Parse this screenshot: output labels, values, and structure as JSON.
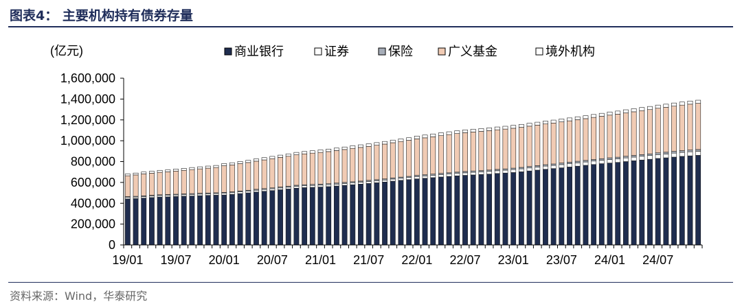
{
  "header": {
    "title": "图表4：  主要机构持有债券存量"
  },
  "footer": {
    "source": "资料来源：Wind，华泰研究"
  },
  "chart_data": {
    "type": "bar",
    "stacked": true,
    "unit_label": "(亿元)",
    "ylim": [
      0,
      1600000
    ],
    "yticks": [
      0,
      200000,
      400000,
      600000,
      800000,
      1000000,
      1200000,
      1400000,
      1600000
    ],
    "ytick_labels": [
      "0",
      "200,000",
      "400,000",
      "600,000",
      "800,000",
      "1,000,000",
      "1,200,000",
      "1,400,000",
      "1,600,000"
    ],
    "xtick_labels": [
      "19/01",
      "19/07",
      "20/01",
      "20/07",
      "21/01",
      "21/07",
      "22/01",
      "22/07",
      "23/01",
      "23/07",
      "24/01",
      "24/07"
    ],
    "legend_position": "top",
    "categories": [
      "19/01",
      "19/02",
      "19/03",
      "19/04",
      "19/05",
      "19/06",
      "19/07",
      "19/08",
      "19/09",
      "19/10",
      "19/11",
      "19/12",
      "20/01",
      "20/02",
      "20/03",
      "20/04",
      "20/05",
      "20/06",
      "20/07",
      "20/08",
      "20/09",
      "20/10",
      "20/11",
      "20/12",
      "21/01",
      "21/02",
      "21/03",
      "21/04",
      "21/05",
      "21/06",
      "21/07",
      "21/08",
      "21/09",
      "21/10",
      "21/11",
      "21/12",
      "22/01",
      "22/02",
      "22/03",
      "22/04",
      "22/05",
      "22/06",
      "22/07",
      "22/08",
      "22/09",
      "22/10",
      "22/11",
      "22/12",
      "23/01",
      "23/02",
      "23/03",
      "23/04",
      "23/05",
      "23/06",
      "23/07",
      "23/08",
      "23/09",
      "23/10",
      "23/11",
      "23/12",
      "24/01",
      "24/02",
      "24/03",
      "24/04",
      "24/05",
      "24/06",
      "24/07",
      "24/08",
      "24/09",
      "24/10",
      "24/11",
      "24/12"
    ],
    "series": [
      {
        "name": "商业银行",
        "color": "#1f2d4f",
        "values": [
          442000,
          445000,
          450000,
          455000,
          460000,
          462000,
          465000,
          468000,
          470000,
          473000,
          476000,
          478000,
          480000,
          485000,
          493000,
          500000,
          508000,
          515000,
          522000,
          530000,
          537000,
          545000,
          550000,
          553000,
          556000,
          560000,
          566000,
          572000,
          578000,
          584000,
          590000,
          597000,
          604000,
          612000,
          620000,
          627000,
          634000,
          640000,
          646000,
          652000,
          658000,
          663000,
          668000,
          672000,
          676000,
          680000,
          686000,
          690000,
          695000,
          702000,
          710000,
          718000,
          726000,
          733000,
          740000,
          748000,
          756000,
          764000,
          772000,
          780000,
          786000,
          792000,
          800000,
          808000,
          815000,
          822000,
          830000,
          836000,
          843000,
          850000,
          855000,
          860000
        ]
      },
      {
        "name": "证券",
        "color": "#ffffff",
        "values": [
          14000,
          14000,
          14000,
          14000,
          14000,
          14000,
          14000,
          14000,
          15000,
          15000,
          15000,
          15000,
          16000,
          16000,
          16000,
          16000,
          17000,
          17000,
          17000,
          17000,
          17000,
          18000,
          18000,
          18000,
          18000,
          18000,
          18000,
          18000,
          19000,
          19000,
          19000,
          19000,
          19000,
          20000,
          20000,
          20000,
          22000,
          22000,
          22000,
          23000,
          23000,
          24000,
          24000,
          25000,
          25000,
          26000,
          26000,
          27000,
          28000,
          28000,
          29000,
          29000,
          30000,
          30000,
          31000,
          31000,
          32000,
          32000,
          33000,
          33000,
          34000,
          34000,
          35000,
          35000,
          36000,
          36000,
          37000,
          37000,
          38000,
          38000,
          39000,
          39000
        ]
      },
      {
        "name": "保险",
        "color": "#a6adb8",
        "values": [
          8000,
          8000,
          8000,
          8000,
          8000,
          8000,
          8000,
          8000,
          8000,
          8000,
          8000,
          8000,
          9000,
          9000,
          9000,
          9000,
          9000,
          9000,
          9000,
          9000,
          9000,
          10000,
          10000,
          10000,
          10000,
          10000,
          10000,
          10000,
          10000,
          10000,
          11000,
          11000,
          11000,
          11000,
          11000,
          11000,
          12000,
          12000,
          12000,
          12000,
          12000,
          12000,
          13000,
          13000,
          13000,
          13000,
          13000,
          13000,
          14000,
          14000,
          14000,
          14000,
          14000,
          14000,
          15000,
          15000,
          15000,
          15000,
          15000,
          15000,
          16000,
          16000,
          16000,
          16000,
          16000,
          16000,
          17000,
          17000,
          17000,
          17000,
          17000,
          17000
        ]
      },
      {
        "name": "广义基金",
        "color": "#f1cbb4",
        "values": [
          200000,
          205000,
          210000,
          212000,
          215000,
          218000,
          222000,
          226000,
          230000,
          234000,
          238000,
          242000,
          255000,
          258000,
          262000,
          266000,
          270000,
          275000,
          280000,
          284000,
          288000,
          292000,
          296000,
          300000,
          304000,
          308000,
          312000,
          316000,
          320000,
          323000,
          326000,
          330000,
          334000,
          338000,
          342000,
          346000,
          350000,
          354000,
          358000,
          362000,
          366000,
          370000,
          372000,
          374000,
          376000,
          378000,
          380000,
          382000,
          383000,
          385000,
          387000,
          389000,
          391000,
          393000,
          395000,
          397000,
          399000,
          401000,
          404000,
          407000,
          410000,
          413000,
          416000,
          419000,
          422000,
          425000,
          428000,
          431000,
          434000,
          437000,
          440000,
          443000
        ]
      },
      {
        "name": "境外机构",
        "color": "#ffffff",
        "values": [
          18000,
          18000,
          18000,
          18000,
          19000,
          19000,
          19000,
          19000,
          20000,
          20000,
          20000,
          20000,
          21000,
          21000,
          21000,
          21000,
          22000,
          22000,
          22000,
          22000,
          23000,
          23000,
          23000,
          23000,
          24000,
          24000,
          24000,
          24000,
          25000,
          25000,
          25000,
          25000,
          25000,
          25000,
          25000,
          25000,
          27000,
          27000,
          27000,
          27000,
          27000,
          27000,
          27000,
          27000,
          27000,
          27000,
          27000,
          27000,
          28000,
          28000,
          28000,
          28000,
          28000,
          28000,
          28000,
          28000,
          28000,
          28000,
          28000,
          28000,
          30000,
          30000,
          30000,
          30000,
          30000,
          30000,
          30000,
          30000,
          30000,
          30000,
          30000,
          30000
        ]
      }
    ]
  }
}
